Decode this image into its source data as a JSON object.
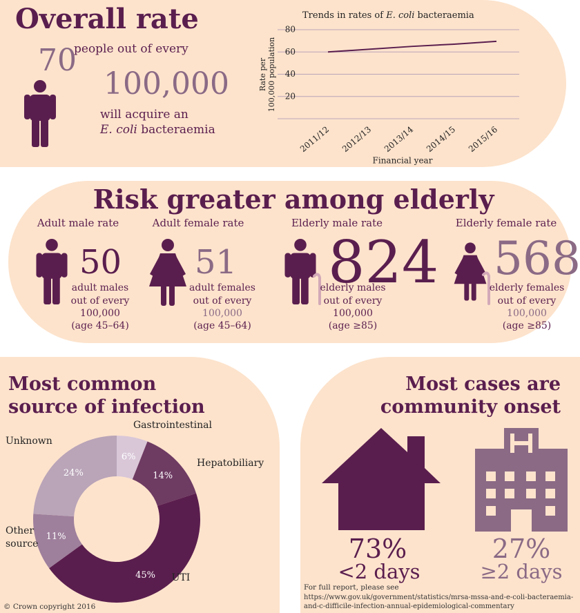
{
  "overall": {
    "title": "Overall rate",
    "count": 70,
    "text": "people out of every",
    "population": "100,000",
    "acquire": "will acquire an",
    "organism": "E. coli",
    "disease": "bacteraemia"
  },
  "chart_data": [
    {
      "type": "line",
      "title": [
        "Trends in rates of",
        "E. coli",
        "bacteraemia"
      ],
      "y_label": [
        "Rate per",
        "100,000 population"
      ],
      "x_label": "Financial year",
      "categories": [
        "2011/12",
        "2012/13",
        "2013/14",
        "2014/15",
        "2015/16"
      ],
      "values": [
        60,
        62.5,
        65,
        67,
        69.5
      ],
      "color": "#5a1e4e",
      "ylim": [
        0,
        80
      ],
      "yticks": [
        20,
        40,
        60,
        80
      ],
      "grid": true
    },
    {
      "type": "pie",
      "categories": [
        "Gastrointestinal",
        "Hepatobiliary",
        "UTI",
        "Other source",
        "Unknown"
      ],
      "values": [
        6,
        14,
        45,
        11,
        24
      ],
      "value_labels": [
        "6%",
        "14%",
        "45%",
        "11%",
        "24%"
      ],
      "colors": [
        "#d9c7d8",
        "#6e3b63",
        "#5a1e4e",
        "#9e7f9c",
        "#b9a4b8"
      ]
    }
  ],
  "risk": {
    "title": "Risk greater among elderly",
    "groups": [
      {
        "label": "Adult male rate",
        "rate": 50,
        "who": "adult males",
        "out_of": "out of every",
        "population": "100,000",
        "age": "(age 45–64)"
      },
      {
        "label": "Adult female rate",
        "rate": 51,
        "who": "adult females",
        "out_of": "out of every",
        "population": "100,000",
        "age": "(age 45–64)"
      },
      {
        "label": "Elderly male rate",
        "rate": 824,
        "who": "elderly males",
        "out_of": "out of every",
        "population": "100,000",
        "age": "(age ≥85)"
      },
      {
        "label": "Elderly female rate",
        "rate": 568,
        "who": "elderly females",
        "out_of": "out of every",
        "population": "100,000",
        "age": "(age ≥85)"
      }
    ]
  },
  "source": {
    "title": [
      "Most common",
      "source of infection"
    ]
  },
  "onset": {
    "title": [
      "Most cases are",
      "community onset"
    ],
    "items": [
      {
        "share": "73%",
        "period": "<2 days"
      },
      {
        "share": "27%",
        "period": "≥2 days"
      }
    ]
  },
  "footer": {
    "note": "For full report, please see",
    "url": "https://www.gov.uk/government/statistics/mrsa-mssa-and-e-coli-bacteraemia-and-c-difficile-infection-annual-epidemiological-commentary",
    "copyright": "© Crown copyright 2016"
  }
}
